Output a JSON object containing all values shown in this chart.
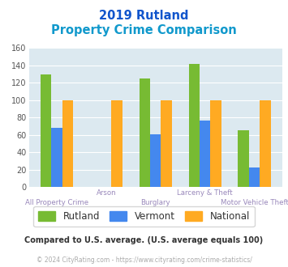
{
  "title_line1": "2019 Rutland",
  "title_line2": "Property Crime Comparison",
  "categories": [
    "All Property Crime",
    "Arson",
    "Burglary",
    "Larceny & Theft",
    "Motor Vehicle Theft"
  ],
  "rutland": [
    130,
    0,
    125,
    142,
    65
  ],
  "vermont": [
    68,
    0,
    61,
    76,
    22
  ],
  "national": [
    100,
    100,
    100,
    100,
    100
  ],
  "color_rutland": "#77bb33",
  "color_vermont": "#4488ee",
  "color_national": "#ffaa22",
  "color_bg_chart": "#dce9f0",
  "color_title1": "#1155cc",
  "color_title2": "#1199cc",
  "color_xticklabels": "#9988bb",
  "ylim": [
    0,
    160
  ],
  "yticks": [
    0,
    20,
    40,
    60,
    80,
    100,
    120,
    140,
    160
  ],
  "footnote1": "Compared to U.S. average. (U.S. average equals 100)",
  "footnote2": "© 2024 CityRating.com - https://www.cityrating.com/crime-statistics/",
  "color_footnote1": "#333333",
  "color_footnote2": "#aaaaaa",
  "color_legend_text": "#333333",
  "legend_labels": [
    "Rutland",
    "Vermont",
    "National"
  ],
  "bar_width": 0.22
}
